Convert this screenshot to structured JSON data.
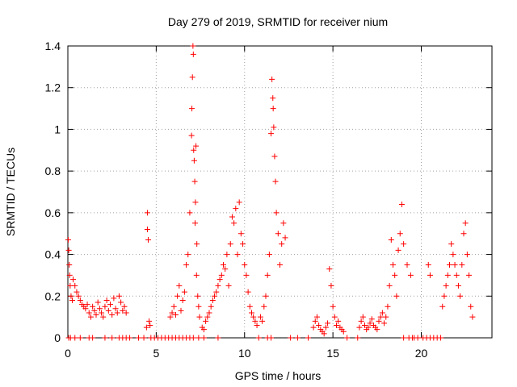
{
  "chart_data": {
    "type": "scatter",
    "title": "Day 279 of 2019, SRMTID for receiver nium",
    "xlabel": "GPS time / hours",
    "ylabel": "SRMTID / TECUs",
    "xlim": [
      0,
      24
    ],
    "ylim": [
      0,
      1.4
    ],
    "xticks": [
      0,
      5,
      10,
      15,
      20
    ],
    "yticks": [
      0,
      0.2,
      0.4,
      0.6,
      0.8,
      1,
      1.2,
      1.4
    ],
    "ytick_labels": [
      "0",
      "0.2",
      "0.4",
      "0.6",
      "0.8",
      "1",
      "1.2",
      "1.4"
    ],
    "grid": true,
    "marker": "+",
    "color": "#ff0000",
    "series": [
      {
        "name": "SRMTID",
        "x": [
          0.02,
          0.05,
          0.08,
          0.1,
          0.13,
          0.18,
          0.25,
          0.3,
          0.4,
          0.5,
          0.6,
          0.7,
          0.8,
          0.9,
          1.0,
          1.1,
          1.2,
          1.3,
          1.4,
          1.5,
          1.6,
          1.7,
          1.8,
          1.9,
          2.0,
          2.1,
          2.2,
          2.3,
          2.4,
          2.5,
          2.6,
          2.7,
          2.8,
          2.9,
          3.0,
          3.1,
          3.2,
          3.3,
          4.45,
          4.5,
          4.5,
          4.55,
          4.6,
          4.65,
          5.8,
          5.9,
          6.0,
          6.1,
          6.2,
          6.3,
          6.4,
          6.5,
          6.6,
          6.7,
          6.8,
          6.9,
          7.0,
          7.02,
          7.05,
          7.08,
          7.1,
          7.12,
          7.15,
          7.18,
          7.2,
          7.22,
          7.25,
          7.28,
          7.3,
          7.35,
          7.4,
          7.45,
          7.6,
          7.7,
          7.8,
          7.9,
          8.0,
          8.1,
          8.2,
          8.3,
          8.4,
          8.5,
          8.6,
          8.7,
          8.8,
          8.9,
          9.0,
          9.1,
          9.2,
          9.3,
          9.4,
          9.5,
          9.6,
          9.7,
          9.8,
          9.9,
          10.0,
          10.1,
          10.2,
          10.3,
          10.4,
          10.5,
          10.6,
          10.7,
          10.9,
          11.0,
          11.1,
          11.2,
          11.3,
          11.4,
          11.5,
          11.55,
          11.6,
          11.62,
          11.65,
          11.7,
          11.75,
          11.8,
          11.9,
          12.0,
          12.1,
          12.2,
          12.3,
          13.9,
          14.0,
          14.1,
          14.2,
          14.3,
          14.4,
          14.5,
          14.6,
          14.7,
          14.8,
          14.9,
          15.0,
          15.1,
          15.2,
          15.3,
          15.4,
          15.5,
          15.6,
          16.5,
          16.6,
          16.7,
          16.8,
          16.9,
          17.0,
          17.1,
          17.2,
          17.3,
          17.4,
          17.5,
          17.6,
          17.7,
          17.8,
          17.9,
          18.0,
          18.1,
          18.2,
          18.3,
          18.4,
          18.5,
          18.6,
          18.7,
          18.8,
          18.9,
          19.0,
          19.2,
          19.4,
          20.4,
          20.5,
          21.2,
          21.3,
          21.4,
          21.5,
          21.6,
          21.7,
          21.8,
          21.9,
          22.0,
          22.1,
          22.2,
          22.3,
          22.4,
          22.5,
          22.6,
          22.7,
          22.8,
          22.9
        ],
        "y": [
          0.47,
          0.42,
          0.35,
          0.3,
          0.25,
          0.2,
          0.18,
          0.28,
          0.25,
          0.22,
          0.2,
          0.18,
          0.16,
          0.15,
          0.14,
          0.16,
          0.12,
          0.1,
          0.15,
          0.13,
          0.11,
          0.17,
          0.14,
          0.12,
          0.1,
          0.15,
          0.18,
          0.13,
          0.16,
          0.11,
          0.19,
          0.14,
          0.12,
          0.2,
          0.17,
          0.13,
          0.15,
          0.12,
          0.05,
          0.6,
          0.52,
          0.47,
          0.08,
          0.06,
          0.1,
          0.12,
          0.15,
          0.11,
          0.2,
          0.25,
          0.13,
          0.18,
          0.22,
          0.35,
          0.4,
          0.6,
          0.97,
          1.1,
          1.25,
          1.4,
          1.36,
          0.9,
          0.85,
          0.75,
          0.55,
          0.65,
          0.92,
          0.3,
          0.45,
          0.2,
          0.15,
          0.1,
          0.05,
          0.04,
          0.08,
          0.1,
          0.12,
          0.15,
          0.18,
          0.2,
          0.22,
          0.25,
          0.28,
          0.3,
          0.35,
          0.33,
          0.4,
          0.25,
          0.45,
          0.58,
          0.55,
          0.62,
          0.4,
          0.65,
          0.5,
          0.45,
          0.35,
          0.3,
          0.22,
          0.15,
          0.12,
          0.1,
          0.08,
          0.06,
          0.1,
          0.08,
          0.15,
          0.2,
          0.3,
          0.4,
          0.98,
          1.24,
          1.15,
          1.1,
          1.01,
          0.87,
          0.75,
          0.6,
          0.5,
          0.35,
          0.45,
          0.55,
          0.48,
          0.05,
          0.08,
          0.1,
          0.06,
          0.04,
          0.03,
          0.02,
          0.05,
          0.07,
          0.33,
          0.25,
          0.15,
          0.1,
          0.06,
          0.08,
          0.05,
          0.04,
          0.03,
          0.05,
          0.08,
          0.1,
          0.06,
          0.04,
          0.05,
          0.07,
          0.09,
          0.06,
          0.05,
          0.04,
          0.08,
          0.1,
          0.12,
          0.07,
          0.1,
          0.15,
          0.25,
          0.47,
          0.35,
          0.3,
          0.2,
          0.42,
          0.5,
          0.64,
          0.45,
          0.35,
          0.3,
          0.35,
          0.3,
          0.15,
          0.2,
          0.25,
          0.3,
          0.35,
          0.45,
          0.4,
          0.35,
          0.3,
          0.25,
          0.2,
          0.35,
          0.5,
          0.55,
          0.4,
          0.3,
          0.15,
          0.1
        ]
      }
    ],
    "zero_marks_x": [
      0.05,
      0.15,
      0.4,
      0.7,
      1.2,
      1.4,
      2.1,
      2.5,
      2.9,
      3.1,
      3.3,
      3.5,
      4.0,
      4.3,
      4.7,
      4.9,
      5.1,
      5.3,
      5.5,
      5.7,
      5.9,
      6.1,
      6.3,
      6.5,
      6.7,
      6.9,
      7.1,
      7.4,
      7.7,
      8.5,
      10.8,
      11.3,
      11.5,
      12.6,
      13.0,
      13.6,
      15.8,
      16.4,
      19.0,
      19.3,
      19.5,
      19.6,
      19.8,
      20.1,
      20.3,
      20.5,
      20.7,
      20.9,
      21.1
    ]
  }
}
